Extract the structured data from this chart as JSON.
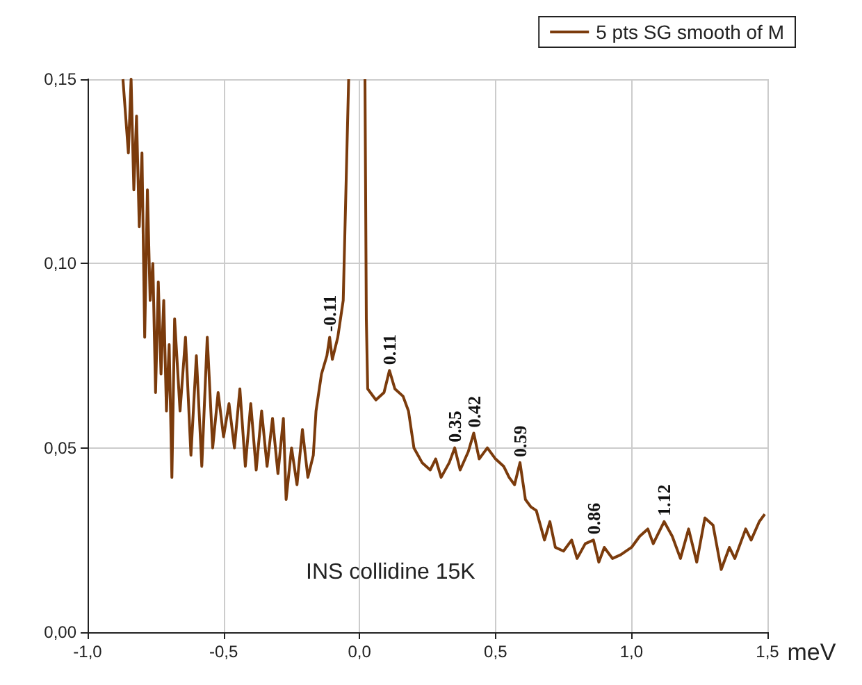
{
  "chart_data": {
    "type": "line",
    "xlabel": "meV",
    "legend": "top right",
    "grid": true,
    "marker": "none",
    "line_style": "solid",
    "xlim": [
      -1,
      1.5
    ],
    "ylim": [
      0,
      0.15
    ],
    "xticks": [
      {
        "value": -1,
        "label": "-1,0"
      },
      {
        "value": -0.5,
        "label": "-0,5"
      },
      {
        "value": 0,
        "label": "0,0"
      },
      {
        "value": 0.5,
        "label": "0,5"
      },
      {
        "value": 1,
        "label": "1,0"
      },
      {
        "value": 1.5,
        "label": "1,5"
      }
    ],
    "yticks": [
      {
        "value": 0,
        "label": "0,00"
      },
      {
        "value": 0.05,
        "label": "0,05"
      },
      {
        "value": 0.1,
        "label": "0,10"
      },
      {
        "value": 0.15,
        "label": "0,15"
      }
    ],
    "x": [
      -0.87,
      -0.85,
      -0.84,
      -0.83,
      -0.82,
      -0.81,
      -0.8,
      -0.79,
      -0.78,
      -0.77,
      -0.76,
      -0.75,
      -0.74,
      -0.73,
      -0.72,
      -0.71,
      -0.7,
      -0.69,
      -0.68,
      -0.66,
      -0.64,
      -0.62,
      -0.6,
      -0.58,
      -0.56,
      -0.54,
      -0.52,
      -0.5,
      -0.48,
      -0.46,
      -0.44,
      -0.42,
      -0.4,
      -0.38,
      -0.36,
      -0.34,
      -0.32,
      -0.3,
      -0.28,
      -0.27,
      -0.25,
      -0.23,
      -0.21,
      -0.19,
      -0.17,
      -0.16,
      -0.14,
      -0.12,
      -0.11,
      -0.1,
      -0.08,
      -0.06,
      -0.04,
      -0.02,
      0.02,
      0.025,
      0.03,
      0.06,
      0.09,
      0.11,
      0.13,
      0.16,
      0.18,
      0.2,
      0.23,
      0.26,
      0.28,
      0.3,
      0.33,
      0.35,
      0.37,
      0.4,
      0.42,
      0.44,
      0.47,
      0.5,
      0.53,
      0.55,
      0.57,
      0.59,
      0.61,
      0.63,
      0.65,
      0.68,
      0.7,
      0.72,
      0.75,
      0.78,
      0.8,
      0.83,
      0.86,
      0.88,
      0.9,
      0.93,
      0.96,
      1,
      1.03,
      1.06,
      1.08,
      1.12,
      1.15,
      1.18,
      1.21,
      1.24,
      1.27,
      1.3,
      1.33,
      1.36,
      1.38,
      1.42,
      1.44,
      1.47,
      1.49
    ],
    "series": [
      {
        "name": "5 pts SG smooth of M",
        "color": "#7b3b0c",
        "values": [
          0.15,
          0.13,
          0.15,
          0.12,
          0.14,
          0.11,
          0.13,
          0.08,
          0.12,
          0.09,
          0.1,
          0.065,
          0.095,
          0.07,
          0.09,
          0.06,
          0.078,
          0.042,
          0.085,
          0.06,
          0.08,
          0.048,
          0.075,
          0.045,
          0.08,
          0.05,
          0.065,
          0.053,
          0.062,
          0.05,
          0.066,
          0.045,
          0.062,
          0.044,
          0.06,
          0.045,
          0.058,
          0.043,
          0.058,
          0.036,
          0.05,
          0.04,
          0.055,
          0.042,
          0.048,
          0.06,
          0.07,
          0.075,
          0.08,
          0.074,
          0.08,
          0.09,
          0.15,
          null,
          0.15,
          0.085,
          0.066,
          0.063,
          0.065,
          0.071,
          0.066,
          0.064,
          0.06,
          0.05,
          0.046,
          0.044,
          0.047,
          0.042,
          0.046,
          0.05,
          0.044,
          0.049,
          0.054,
          0.047,
          0.05,
          0.047,
          0.045,
          0.042,
          0.04,
          0.046,
          0.036,
          0.034,
          0.033,
          0.025,
          0.03,
          0.023,
          0.022,
          0.025,
          0.02,
          0.024,
          0.025,
          0.019,
          0.023,
          0.02,
          0.021,
          0.023,
          0.026,
          0.028,
          0.024,
          0.03,
          0.026,
          0.02,
          0.028,
          0.019,
          0.031,
          0.029,
          0.017,
          0.023,
          0.02,
          0.028,
          0.025,
          0.03,
          0.032
        ]
      }
    ],
    "annotations": [
      {
        "text": "-0.11",
        "x": -0.11,
        "y": 0.08
      },
      {
        "text": "0.11",
        "x": 0.11,
        "y": 0.071
      },
      {
        "text": "0.35",
        "x": 0.35,
        "y": 0.05
      },
      {
        "text": "0.42",
        "x": 0.42,
        "y": 0.054
      },
      {
        "text": "0.59",
        "x": 0.59,
        "y": 0.046
      },
      {
        "text": "0.86",
        "x": 0.86,
        "y": 0.025
      },
      {
        "text": "1.12",
        "x": 1.12,
        "y": 0.03
      },
      "INS collidine 15K"
    ]
  }
}
